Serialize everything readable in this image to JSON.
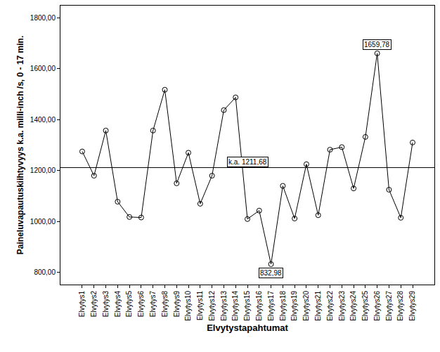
{
  "chart_data": {
    "type": "line",
    "x_label": "Elvytystapahtumat",
    "y_label": "Paineluvapautuskiihtyvyys k.a. milli-inch /s, 0 - 17 min.",
    "categories": [
      "Elvytys1",
      "Elvytys2",
      "Elvytys3",
      "Elvytys4",
      "Elvytys5",
      "Elvytys6",
      "Elvytys7",
      "Elvytys8",
      "Elvytys9",
      "Elvytys10",
      "Elvytys11",
      "Elvytys12",
      "Elvytys13",
      "Elvytys14",
      "Elvytys15",
      "Elvytys16",
      "Elvytys17",
      "Elvytys18",
      "Elvytys19",
      "Elvytys20",
      "Elvytys21",
      "Elvytys22",
      "Elvytys23",
      "Elvytys24",
      "Elvytys25",
      "Elvytys26",
      "Elvytys27",
      "Elvytys28",
      "Elvytys29"
    ],
    "values": [
      1275,
      1180,
      1357,
      1078,
      1018,
      1016,
      1357,
      1517,
      1150,
      1270,
      1070,
      1180,
      1437,
      1487,
      1010,
      1043,
      832.98,
      1140,
      1012,
      1225,
      1025,
      1282,
      1292,
      1130,
      1332,
      1659.78,
      1125,
      1015,
      1310
    ],
    "color": "#000000",
    "marker": "open-circle",
    "line_style": "solid",
    "ylim": [
      753,
      1847
    ],
    "yticks": [
      {
        "value": 800,
        "label": "800,00"
      },
      {
        "value": 1000,
        "label": "1000,00"
      },
      {
        "value": 1200,
        "label": "1200,00"
      },
      {
        "value": 1400,
        "label": "1400,00"
      },
      {
        "value": 1600,
        "label": "1600,00"
      },
      {
        "value": 1800,
        "label": "1800,00"
      }
    ],
    "grid": false,
    "reference_line": {
      "value": 1211.68,
      "label": "k.a. 1211,68"
    },
    "annotations": [
      {
        "category": "Elvytys26",
        "text": "1659,78"
      },
      {
        "category": "Elvytys17",
        "text": "832,98"
      }
    ]
  }
}
